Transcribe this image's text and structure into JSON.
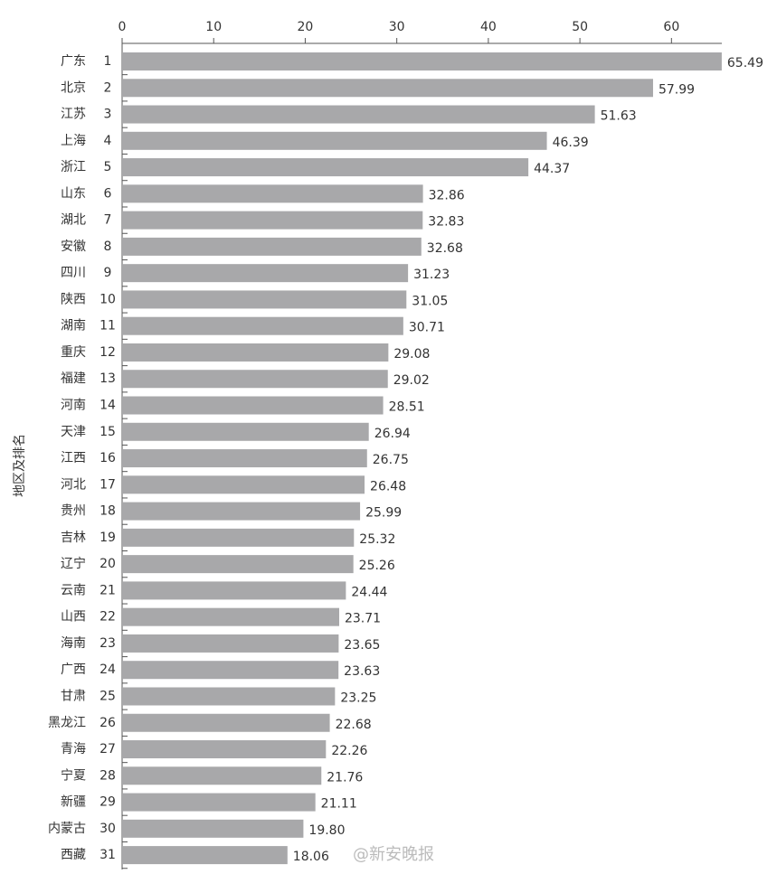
{
  "chart_data": {
    "type": "barh",
    "y_label": "地区及排名",
    "categories": [
      "广东",
      "北京",
      "江苏",
      "上海",
      "浙江",
      "山东",
      "湖北",
      "安徽",
      "四川",
      "陕西",
      "湖南",
      "重庆",
      "福建",
      "河南",
      "天津",
      "江西",
      "河北",
      "贵州",
      "吉林",
      "辽宁",
      "云南",
      "山西",
      "海南",
      "广西",
      "甘肃",
      "黑龙江",
      "青海",
      "宁夏",
      "新疆",
      "内蒙古",
      "西藏"
    ],
    "ranks": [
      1,
      2,
      3,
      4,
      5,
      6,
      7,
      8,
      9,
      10,
      11,
      12,
      13,
      14,
      15,
      16,
      17,
      18,
      19,
      20,
      21,
      22,
      23,
      24,
      25,
      26,
      27,
      28,
      29,
      30,
      31
    ],
    "values": [
      65.49,
      57.99,
      51.63,
      46.39,
      44.37,
      32.86,
      32.83,
      32.68,
      31.23,
      31.05,
      30.71,
      29.08,
      29.02,
      28.51,
      26.94,
      26.75,
      26.48,
      25.99,
      25.32,
      25.26,
      24.44,
      23.71,
      23.65,
      23.63,
      23.25,
      22.68,
      22.26,
      21.76,
      21.11,
      19.8,
      18.06
    ],
    "value_labels": [
      "65.49",
      "57.99",
      "51.63",
      "46.39",
      "44.37",
      "32.86",
      "32.83",
      "32.68",
      "31.23",
      "31.05",
      "30.71",
      "29.08",
      "29.02",
      "28.51",
      "26.94",
      "26.75",
      "26.48",
      "25.99",
      "25.32",
      "25.26",
      "24.44",
      "23.71",
      "23.65",
      "23.63",
      "23.25",
      "22.68",
      "22.26",
      "21.76",
      "21.11",
      "19.80",
      "18.06"
    ],
    "color": "#a8a8aa",
    "xlim": [
      0,
      65.5
    ],
    "xticks": [
      0,
      10,
      20,
      30,
      40,
      50,
      60
    ],
    "watermark": "@新安晚报"
  }
}
